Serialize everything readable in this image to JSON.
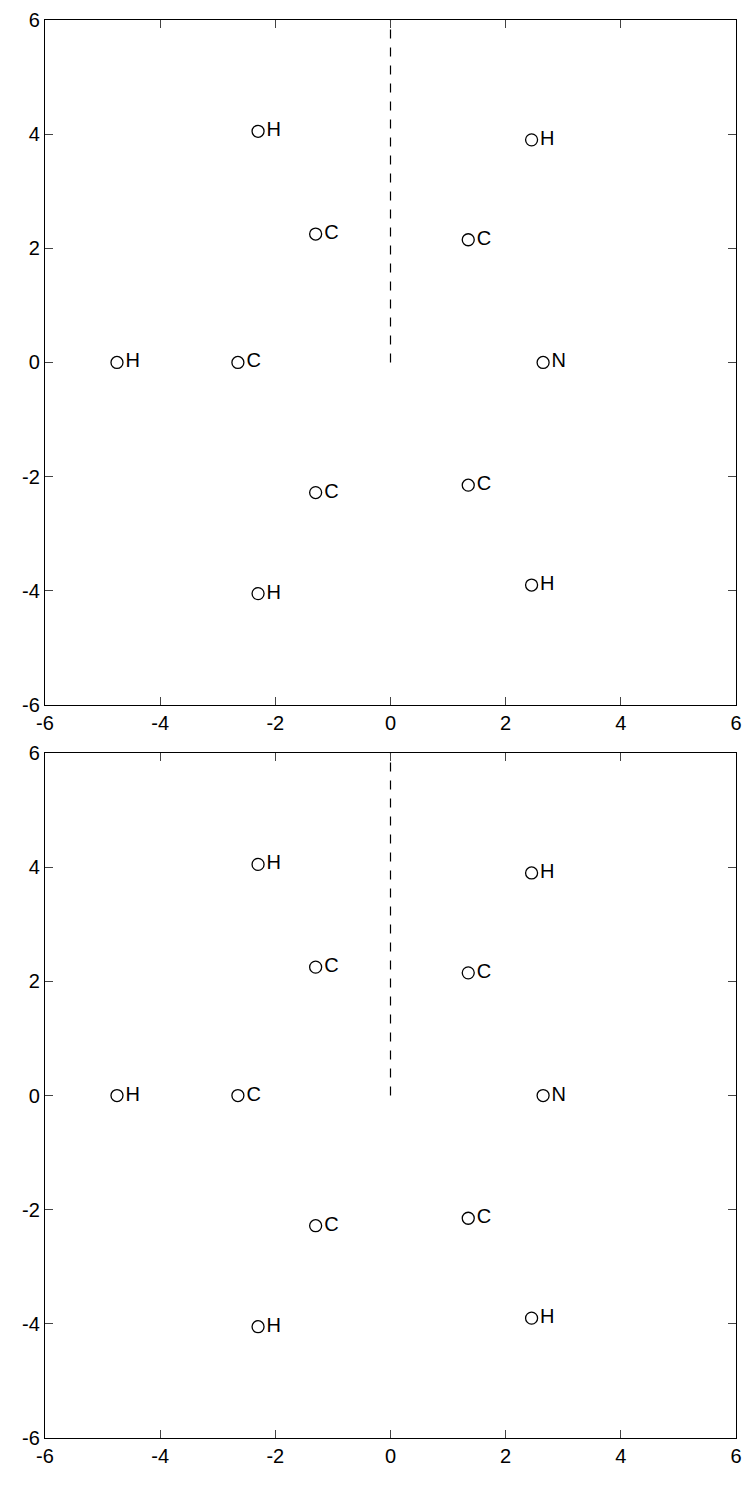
{
  "chart_data": [
    {
      "type": "scatter",
      "xlim": [
        -6,
        6
      ],
      "ylim": [
        -6,
        6
      ],
      "xticks": [
        -6,
        -4,
        -2,
        0,
        2,
        4,
        6
      ],
      "yticks": [
        -6,
        -4,
        -2,
        0,
        2,
        4,
        6
      ],
      "marker": "circle-open",
      "color": "#000000",
      "points": [
        {
          "label": "H",
          "x": -2.3,
          "y": 4.05
        },
        {
          "label": "C",
          "x": -1.3,
          "y": 2.25
        },
        {
          "label": "C",
          "x": 1.35,
          "y": 2.15
        },
        {
          "label": "H",
          "x": 2.45,
          "y": 3.9
        },
        {
          "label": "H",
          "x": -4.75,
          "y": 0
        },
        {
          "label": "C",
          "x": -2.65,
          "y": 0
        },
        {
          "label": "N",
          "x": 2.65,
          "y": 0
        },
        {
          "label": "C",
          "x": -1.3,
          "y": -2.28
        },
        {
          "label": "C",
          "x": 1.35,
          "y": -2.15
        },
        {
          "label": "H",
          "x": -2.3,
          "y": -4.05
        },
        {
          "label": "H",
          "x": 2.45,
          "y": -3.9
        }
      ],
      "lines": [
        {
          "x": [
            0,
            0
          ],
          "y": [
            0,
            6
          ],
          "line_style": "dash"
        }
      ]
    },
    {
      "type": "scatter",
      "xlim": [
        -6,
        6
      ],
      "ylim": [
        -6,
        6
      ],
      "xticks": [
        -6,
        -4,
        -2,
        0,
        2,
        4,
        6
      ],
      "yticks": [
        -6,
        -4,
        -2,
        0,
        2,
        4,
        6
      ],
      "marker": "circle-open",
      "color": "#000000",
      "points": [
        {
          "label": "H",
          "x": -2.3,
          "y": 4.05
        },
        {
          "label": "C",
          "x": -1.3,
          "y": 2.25
        },
        {
          "label": "C",
          "x": 1.35,
          "y": 2.15
        },
        {
          "label": "H",
          "x": 2.45,
          "y": 3.9
        },
        {
          "label": "H",
          "x": -4.75,
          "y": 0
        },
        {
          "label": "C",
          "x": -2.65,
          "y": 0
        },
        {
          "label": "N",
          "x": 2.65,
          "y": 0
        },
        {
          "label": "C",
          "x": -1.3,
          "y": -2.28
        },
        {
          "label": "C",
          "x": 1.35,
          "y": -2.15
        },
        {
          "label": "H",
          "x": -2.3,
          "y": -4.05
        },
        {
          "label": "H",
          "x": 2.45,
          "y": -3.9
        }
      ],
      "lines": [
        {
          "x": [
            0,
            0
          ],
          "y": [
            0,
            6
          ],
          "line_style": "dash"
        }
      ]
    }
  ]
}
